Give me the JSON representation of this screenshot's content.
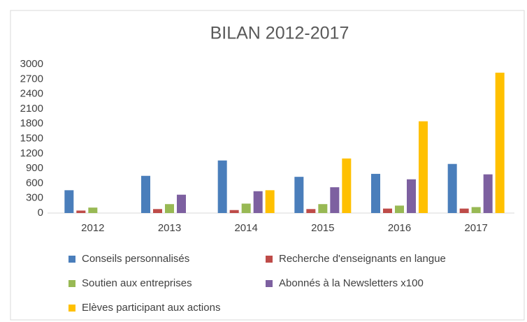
{
  "chart_data": {
    "type": "bar",
    "title": "BILAN 2012-2017",
    "categories": [
      "2012",
      "2013",
      "2014",
      "2015",
      "2016",
      "2017"
    ],
    "series": [
      {
        "name": "Conseils personnalisés",
        "color": "#4a7ebb",
        "values": [
          460,
          750,
          1060,
          730,
          790,
          990
        ]
      },
      {
        "name": "Recherche d'enseignants en langue",
        "color": "#be4b48",
        "values": [
          50,
          80,
          60,
          80,
          90,
          90
        ]
      },
      {
        "name": "Soutien aux entreprises",
        "color": "#98b954",
        "values": [
          110,
          180,
          190,
          180,
          150,
          120
        ]
      },
      {
        "name": "Abonnés à la Newsletters x100",
        "color": "#7d60a0",
        "values": [
          0,
          370,
          440,
          520,
          680,
          780
        ]
      },
      {
        "name": "Elèves participant aux actions",
        "color": "#ffc000",
        "values": [
          0,
          0,
          460,
          1100,
          1850,
          2830
        ]
      }
    ],
    "ylim": [
      0,
      3000
    ],
    "yticks": [
      0,
      300,
      600,
      900,
      1200,
      1500,
      1800,
      2100,
      2400,
      2700,
      3000
    ],
    "grid": false
  }
}
